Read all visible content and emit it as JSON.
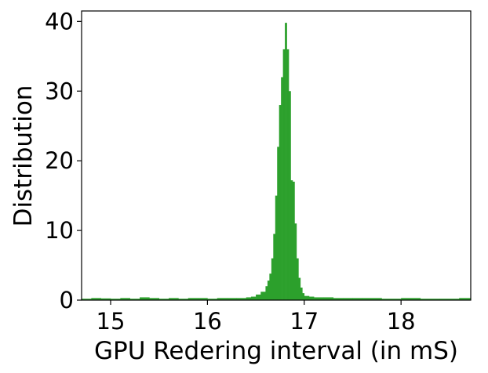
{
  "chart_data": {
    "type": "histogram",
    "title": "",
    "xlabel": "GPU Redering interval (in mS)",
    "ylabel": "Distribution",
    "xlim": [
      14.7,
      18.72
    ],
    "ylim": [
      0,
      41.5
    ],
    "xticks": [
      15,
      16,
      17,
      18
    ],
    "yticks": [
      0,
      10,
      20,
      30,
      40
    ],
    "grid": false,
    "color": "#2ca02c",
    "bins": {
      "x": [
        14.7,
        14.8,
        14.9,
        15.0,
        15.1,
        15.2,
        15.3,
        15.4,
        15.5,
        15.6,
        15.7,
        15.8,
        15.9,
        16.0,
        16.1,
        16.2,
        16.3,
        16.4,
        16.45,
        16.5,
        16.55,
        16.6,
        16.62,
        16.64,
        16.66,
        16.68,
        16.7,
        16.72,
        16.74,
        16.76,
        16.78,
        16.8,
        16.82,
        16.84,
        16.86,
        16.88,
        16.9,
        16.92,
        16.94,
        16.96,
        16.98,
        17.0,
        17.05,
        17.1,
        17.2,
        17.3,
        17.4,
        17.5,
        17.6,
        17.8,
        18.0,
        18.2,
        18.4,
        18.6
      ],
      "values": [
        0.2,
        0.3,
        0.25,
        0.2,
        0.3,
        0.2,
        0.4,
        0.3,
        0.2,
        0.3,
        0.2,
        0.3,
        0.3,
        0.2,
        0.3,
        0.3,
        0.3,
        0.4,
        0.5,
        0.8,
        1.2,
        2.0,
        2.8,
        3.8,
        6.0,
        9.5,
        15.0,
        22.0,
        28.0,
        32.0,
        36.0,
        39.8,
        36.0,
        30.0,
        17.2,
        17.0,
        11.0,
        6.0,
        3.2,
        1.8,
        1.0,
        0.6,
        0.5,
        0.4,
        0.4,
        0.3,
        0.3,
        0.3,
        0.3,
        0.2,
        0.3,
        0.2,
        0.2,
        0.3
      ]
    }
  }
}
